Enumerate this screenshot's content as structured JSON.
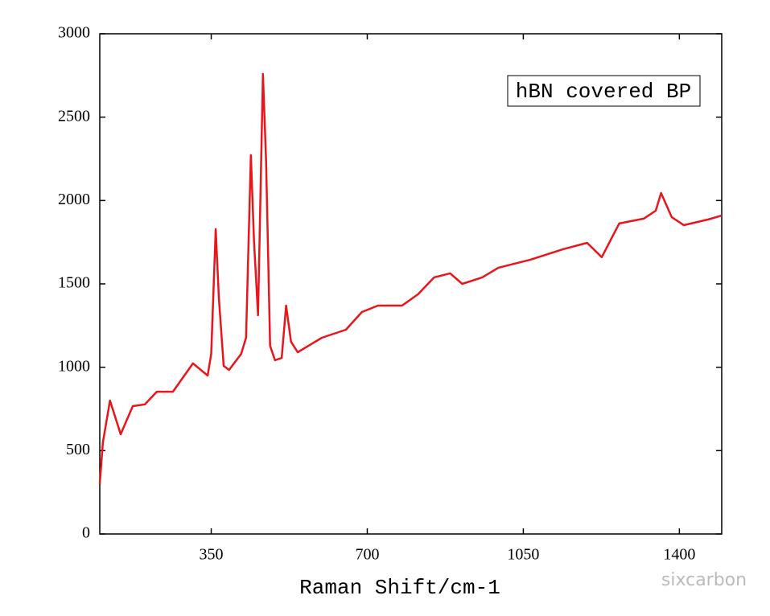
{
  "chart_data": {
    "type": "line",
    "xlabel": "Raman Shift/cm-1",
    "annotation": "hBN covered BP",
    "watermark": "sixcarbon",
    "x": [
      100,
      107,
      123,
      147,
      174,
      201,
      228,
      264,
      309,
      342,
      350,
      360,
      367,
      378,
      390,
      417,
      428,
      439,
      446,
      455,
      466,
      473,
      482,
      493,
      508,
      518,
      529,
      544,
      598,
      652,
      688,
      724,
      778,
      814,
      850,
      886,
      913,
      958,
      994,
      1066,
      1139,
      1193,
      1226,
      1265,
      1320,
      1347,
      1359,
      1383,
      1410,
      1464,
      1495
    ],
    "series": [
      {
        "name": "hBN covered BP",
        "color": "#e8161b",
        "values": [
          300,
          550,
          800,
          598,
          767,
          777,
          853,
          853,
          1023,
          950,
          1080,
          1828,
          1418,
          1008,
          984,
          1080,
          1177,
          2272,
          1756,
          1312,
          2759,
          2238,
          1128,
          1042,
          1056,
          1370,
          1153,
          1090,
          1177,
          1225,
          1331,
          1370,
          1370,
          1438,
          1539,
          1563,
          1500,
          1539,
          1597,
          1645,
          1708,
          1746,
          1660,
          1862,
          1891,
          1939,
          2045,
          1900,
          1852,
          1886,
          1910
        ]
      }
    ],
    "xlim": [
      100,
      1495
    ],
    "xticks": [
      350,
      700,
      1050,
      1400
    ],
    "ylim": [
      0,
      3000
    ],
    "yticks": [
      0,
      500,
      1000,
      1500,
      2000,
      2500,
      3000
    ]
  }
}
